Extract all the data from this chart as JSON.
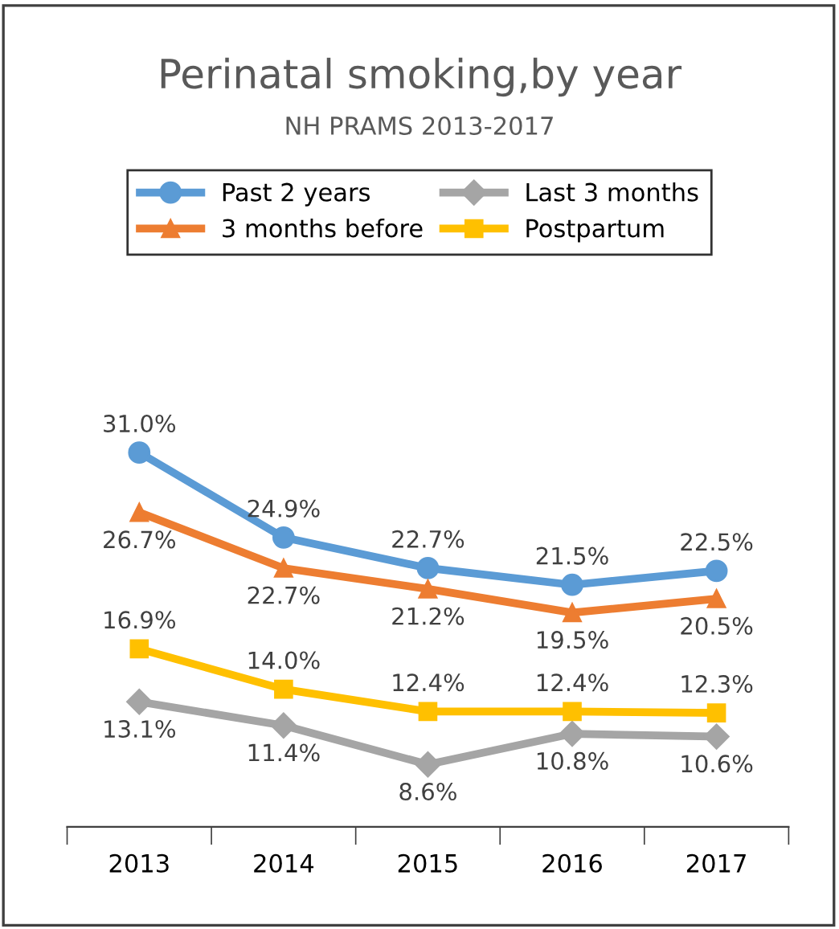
{
  "chart_data": {
    "type": "line",
    "title": "Perinatal smoking,by year",
    "subtitle": "NH PRAMS 2013-2017",
    "categories": [
      "2013",
      "2014",
      "2015",
      "2016",
      "2017"
    ],
    "series": [
      {
        "name": "Past 2 years",
        "color": "#5b9bd5",
        "marker": "circle",
        "values": [
          31.0,
          24.9,
          22.7,
          21.5,
          22.5
        ],
        "value_labels": [
          "31.0%",
          "24.9%",
          "22.7%",
          "21.5%",
          "22.5%"
        ]
      },
      {
        "name": "3 months before",
        "color": "#ed7d31",
        "marker": "triangle",
        "values": [
          26.7,
          22.7,
          21.2,
          19.5,
          20.5
        ],
        "value_labels": [
          "26.7%",
          "22.7%",
          "21.2%",
          "19.5%",
          "20.5%"
        ]
      },
      {
        "name": "Last 3 months",
        "color": "#a5a5a5",
        "marker": "diamond",
        "values": [
          13.1,
          11.4,
          8.6,
          10.8,
          10.6
        ],
        "value_labels": [
          "13.1%",
          "11.4%",
          "8.6%",
          "10.8%",
          "10.6%"
        ]
      },
      {
        "name": "Postpartum",
        "color": "#ffc000",
        "marker": "square",
        "values": [
          16.9,
          14.0,
          12.4,
          12.4,
          12.3
        ],
        "value_labels": [
          "16.9%",
          "14.0%",
          "12.4%",
          "12.4%",
          "12.3%"
        ]
      }
    ],
    "legend": "top",
    "tick_labels": "x"
  }
}
